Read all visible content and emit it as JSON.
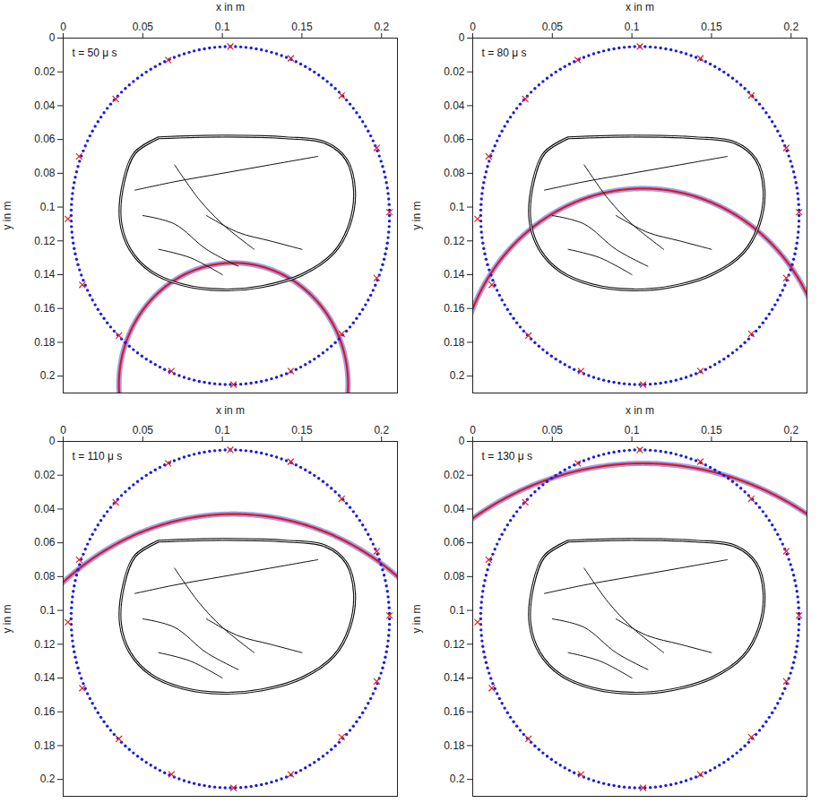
{
  "chart_data": {
    "type": "wavefield",
    "x_label": "x in m",
    "y_label": "y in m",
    "xlim": [
      0,
      0.21
    ],
    "ylim": [
      0.21,
      0
    ],
    "xticks": [
      0,
      0.05,
      0.1,
      0.15,
      0.2
    ],
    "yticks": [
      0,
      0.02,
      0.04,
      0.06,
      0.08,
      0.1,
      0.12,
      0.14,
      0.16,
      0.18,
      0.2
    ],
    "grid": false,
    "sensors": {
      "cx": 0.105,
      "cy": 0.105,
      "r": 0.1,
      "count": 192,
      "color": "#1a1ae6",
      "marker": "dot"
    },
    "marked_sensors": {
      "x": [
        0.105,
        0.143,
        0.175,
        0.197,
        0.205,
        0.197,
        0.175,
        0.143,
        0.107,
        0.068,
        0.035,
        0.012,
        0.003,
        0.01,
        0.033,
        0.066
      ],
      "y": [
        0.005,
        0.012,
        0.034,
        0.065,
        0.103,
        0.142,
        0.175,
        0.197,
        0.205,
        0.197,
        0.176,
        0.146,
        0.107,
        0.07,
        0.036,
        0.013
      ],
      "color": "#e02020",
      "marker": "x"
    },
    "outline": {
      "x": [
        0.06,
        0.1,
        0.14,
        0.165,
        0.178,
        0.183,
        0.18,
        0.17,
        0.15,
        0.125,
        0.1,
        0.075,
        0.055,
        0.042,
        0.036,
        0.038,
        0.045,
        0.06
      ],
      "y": [
        0.059,
        0.058,
        0.059,
        0.062,
        0.072,
        0.09,
        0.11,
        0.127,
        0.14,
        0.147,
        0.149,
        0.146,
        0.138,
        0.125,
        0.108,
        0.085,
        0.068,
        0.059
      ],
      "color": "#111111"
    },
    "structures": [
      {
        "x": [
          0.045,
          0.07,
          0.1,
          0.13,
          0.16
        ],
        "y": [
          0.09,
          0.085,
          0.08,
          0.075,
          0.07
        ]
      },
      {
        "x": [
          0.05,
          0.07,
          0.09,
          0.11
        ],
        "y": [
          0.105,
          0.11,
          0.125,
          0.135
        ]
      },
      {
        "x": [
          0.06,
          0.08,
          0.1
        ],
        "y": [
          0.125,
          0.13,
          0.14
        ]
      },
      {
        "x": [
          0.09,
          0.11,
          0.13,
          0.15
        ],
        "y": [
          0.105,
          0.115,
          0.12,
          0.125
        ]
      },
      {
        "x": [
          0.07,
          0.085,
          0.1,
          0.12
        ],
        "y": [
          0.075,
          0.095,
          0.11,
          0.125
        ]
      }
    ],
    "panels": [
      {
        "annotation": "t = 50 μ s",
        "wavefront": {
          "cx": 0.107,
          "cy": 0.205,
          "r": 0.072,
          "color": "#e01818"
        }
      },
      {
        "annotation": "t = 80 μ s",
        "wavefront": {
          "cx": 0.107,
          "cy": 0.205,
          "r": 0.116,
          "color": "#e01818"
        }
      },
      {
        "annotation": "t = 110 μ s",
        "wavefront": {
          "cx": 0.107,
          "cy": 0.205,
          "r": 0.162,
          "color": "#e01818"
        }
      },
      {
        "annotation": "t = 130 μ s",
        "wavefront": {
          "cx": 0.107,
          "cy": 0.205,
          "r": 0.192,
          "color": "#e01818"
        }
      }
    ]
  }
}
